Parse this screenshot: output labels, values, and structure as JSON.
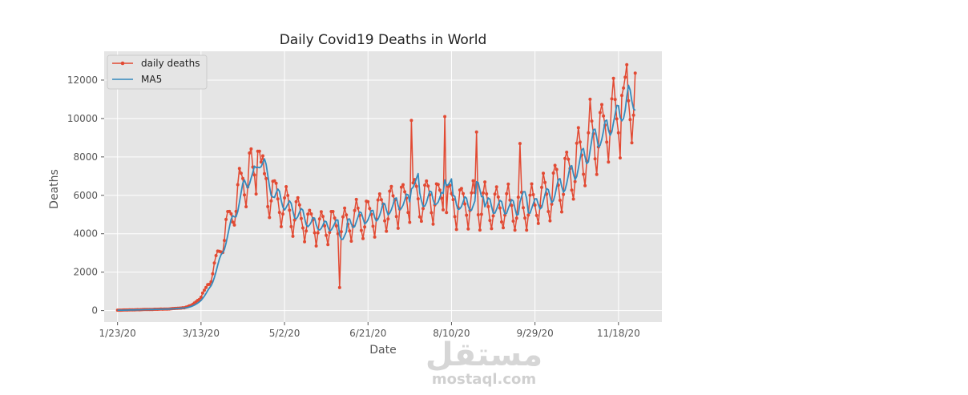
{
  "chart_data": {
    "type": "line",
    "title": "Daily Covid19 Deaths in World",
    "xlabel": "Date",
    "ylabel": "Deaths",
    "x_ticks": [
      "1/23/20",
      "3/13/20",
      "5/2/20",
      "6/21/20",
      "8/10/20",
      "9/29/20",
      "11/18/20"
    ],
    "y_ticks": [
      0,
      2000,
      4000,
      6000,
      8000,
      10000,
      12000
    ],
    "ylim": [
      -600,
      13500
    ],
    "xlim_days": [
      -8,
      326
    ],
    "grid": true,
    "legend_position": "top-left",
    "series": [
      {
        "name": "daily deaths",
        "color": "#e24a33",
        "marker": "dot",
        "waypoints": [
          [
            0,
            20
          ],
          [
            10,
            40
          ],
          [
            20,
            60
          ],
          [
            30,
            80
          ],
          [
            40,
            150
          ],
          [
            45,
            300
          ],
          [
            50,
            700
          ],
          [
            55,
            1500
          ],
          [
            60,
            2800
          ],
          [
            65,
            4200
          ],
          [
            70,
            5600
          ],
          [
            75,
            6500
          ],
          [
            80,
            7100
          ],
          [
            85,
            6900
          ],
          [
            90,
            6400
          ],
          [
            95,
            5800
          ],
          [
            100,
            5400
          ],
          [
            110,
            4800
          ],
          [
            120,
            4400
          ],
          [
            125,
            4500
          ],
          [
            135,
            4500
          ],
          [
            145,
            4800
          ],
          [
            160,
            5300
          ],
          [
            175,
            5700
          ],
          [
            190,
            5800
          ],
          [
            205,
            5600
          ],
          [
            220,
            5500
          ],
          [
            235,
            5400
          ],
          [
            250,
            5500
          ],
          [
            260,
            6200
          ],
          [
            270,
            7000
          ],
          [
            280,
            8300
          ],
          [
            290,
            9400
          ],
          [
            300,
            10200
          ],
          [
            305,
            10800
          ],
          [
            310,
            11000
          ]
        ],
        "spikes": [
          [
            79,
            8200
          ],
          [
            84,
            8300
          ],
          [
            85,
            8300
          ],
          [
            133,
            1200
          ],
          [
            176,
            9900
          ],
          [
            196,
            10100
          ],
          [
            215,
            9300
          ],
          [
            241,
            8700
          ],
          [
            283,
            11000
          ],
          [
            302,
            11200
          ],
          [
            305,
            12800
          ]
        ]
      },
      {
        "name": "MA5",
        "color": "#348abd"
      }
    ]
  },
  "watermark": {
    "arabic": "مستقل",
    "latin": "mostaql.com"
  }
}
